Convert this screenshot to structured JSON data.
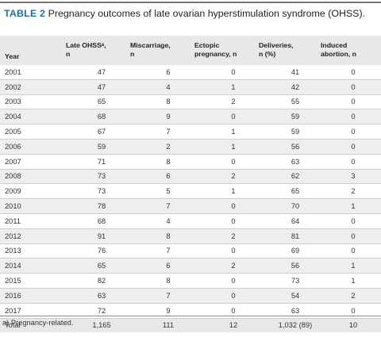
{
  "caption": {
    "label": "TABLE 2",
    "title": "Pregnancy outcomes of late ovarian hyperstimulation syndrome  (OHSS)."
  },
  "header": {
    "year": "Year",
    "late_ohss_1": "Late OHSSᵃ,",
    "late_ohss_2": "n",
    "miscarriage_1": "Miscarriage,",
    "miscarriage_2": "n",
    "ectopic_1": "Ectopic",
    "ectopic_2": "pregnancy, n",
    "deliveries_1": "Deliveries,",
    "deliveries_2": "n (%)",
    "induced_1": "Induced",
    "induced_2": "abortion, n"
  },
  "rows": [
    [
      "2001",
      "47",
      "6",
      "0",
      "41",
      "0"
    ],
    [
      "2002",
      "47",
      "4",
      "1",
      "42",
      "0"
    ],
    [
      "2003",
      "65",
      "8",
      "2",
      "55",
      "0"
    ],
    [
      "2004",
      "68",
      "9",
      "0",
      "59",
      "0"
    ],
    [
      "2005",
      "67",
      "7",
      "1",
      "59",
      "0"
    ],
    [
      "2006",
      "59",
      "2",
      "1",
      "56",
      "0"
    ],
    [
      "2007",
      "71",
      "8",
      "0",
      "63",
      "0"
    ],
    [
      "2008",
      "73",
      "6",
      "2",
      "62",
      "3"
    ],
    [
      "2009",
      "73",
      "5",
      "1",
      "65",
      "2"
    ],
    [
      "2010",
      "78",
      "7",
      "0",
      "70",
      "1"
    ],
    [
      "2011",
      "68",
      "4",
      "0",
      "64",
      "0"
    ],
    [
      "2012",
      "91",
      "8",
      "2",
      "81",
      "0"
    ],
    [
      "2013",
      "76",
      "7",
      "0",
      "69",
      "0"
    ],
    [
      "2014",
      "65",
      "6",
      "2",
      "56",
      "1"
    ],
    [
      "2015",
      "82",
      "8",
      "0",
      "73",
      "1"
    ],
    [
      "2016",
      "63",
      "7",
      "0",
      "54",
      "2"
    ],
    [
      "2017",
      "72",
      "9",
      "0",
      "63",
      "0"
    ]
  ],
  "total": [
    "Total",
    "1,165",
    "111",
    "12",
    "1,032 (89)",
    "10"
  ],
  "footnote": "a) Pregnancy-related."
}
